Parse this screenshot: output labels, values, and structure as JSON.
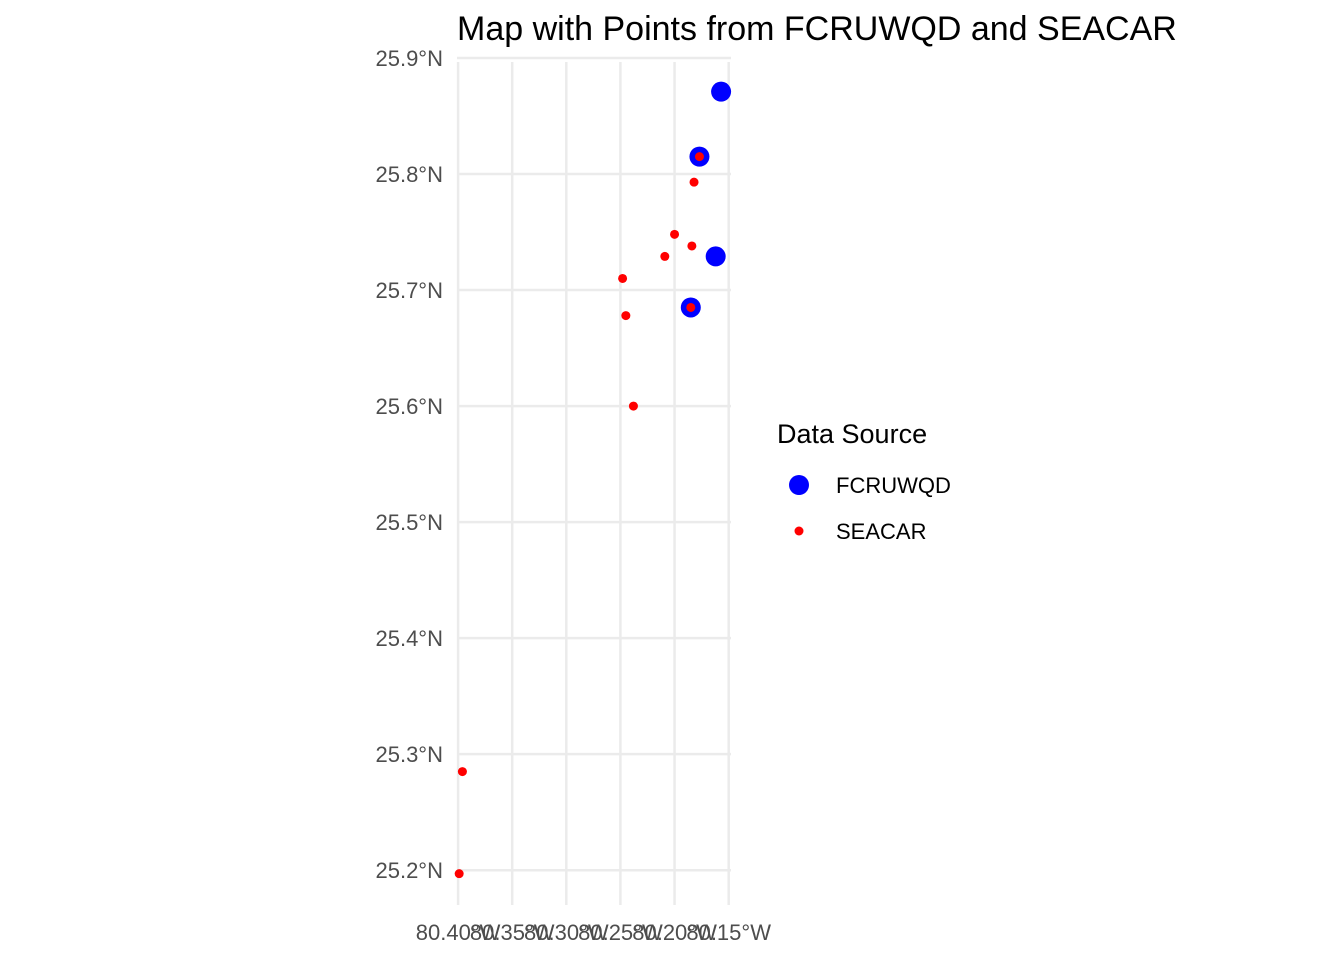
{
  "chart_data": {
    "type": "scatter",
    "title": "Map with Points from FCRUWQD and SEACAR",
    "xlabel": "",
    "ylabel": "",
    "x_ticks": [
      {
        "value": -80.4,
        "label": "80.40°W"
      },
      {
        "value": -80.35,
        "label": "80.35°W"
      },
      {
        "value": -80.3,
        "label": "80.30°W"
      },
      {
        "value": -80.25,
        "label": "80.25°W"
      },
      {
        "value": -80.2,
        "label": "80.20°W"
      },
      {
        "value": -80.15,
        "label": "80.15°W"
      }
    ],
    "y_ticks": [
      {
        "value": 25.2,
        "label": "25.2°N"
      },
      {
        "value": 25.3,
        "label": "25.3°N"
      },
      {
        "value": 25.4,
        "label": "25.4°N"
      },
      {
        "value": 25.5,
        "label": "25.5°N"
      },
      {
        "value": 25.6,
        "label": "25.6°N"
      },
      {
        "value": 25.7,
        "label": "25.7°N"
      },
      {
        "value": 25.8,
        "label": "25.8°N"
      },
      {
        "value": 25.9,
        "label": "25.9°N"
      }
    ],
    "xlim": [
      -80.401,
      -80.146
    ],
    "ylim": [
      25.17,
      25.9
    ],
    "grid": true,
    "legend": {
      "title": "Data Source",
      "position": "right"
    },
    "series": [
      {
        "name": "FCRUWQD",
        "color": "#0000ff",
        "marker_size": "large",
        "points": [
          {
            "x": -80.157,
            "y": 25.871
          },
          {
            "x": -80.177,
            "y": 25.815
          },
          {
            "x": -80.162,
            "y": 25.729
          },
          {
            "x": -80.185,
            "y": 25.685
          }
        ]
      },
      {
        "name": "SEACAR",
        "color": "#ff0000",
        "marker_size": "small",
        "points": [
          {
            "x": -80.177,
            "y": 25.815
          },
          {
            "x": -80.182,
            "y": 25.793
          },
          {
            "x": -80.2,
            "y": 25.748
          },
          {
            "x": -80.184,
            "y": 25.738
          },
          {
            "x": -80.209,
            "y": 25.729
          },
          {
            "x": -80.248,
            "y": 25.71
          },
          {
            "x": -80.245,
            "y": 25.678
          },
          {
            "x": -80.185,
            "y": 25.685
          },
          {
            "x": -80.238,
            "y": 25.6
          },
          {
            "x": -80.396,
            "y": 25.285
          },
          {
            "x": -80.399,
            "y": 25.197
          }
        ]
      }
    ]
  }
}
